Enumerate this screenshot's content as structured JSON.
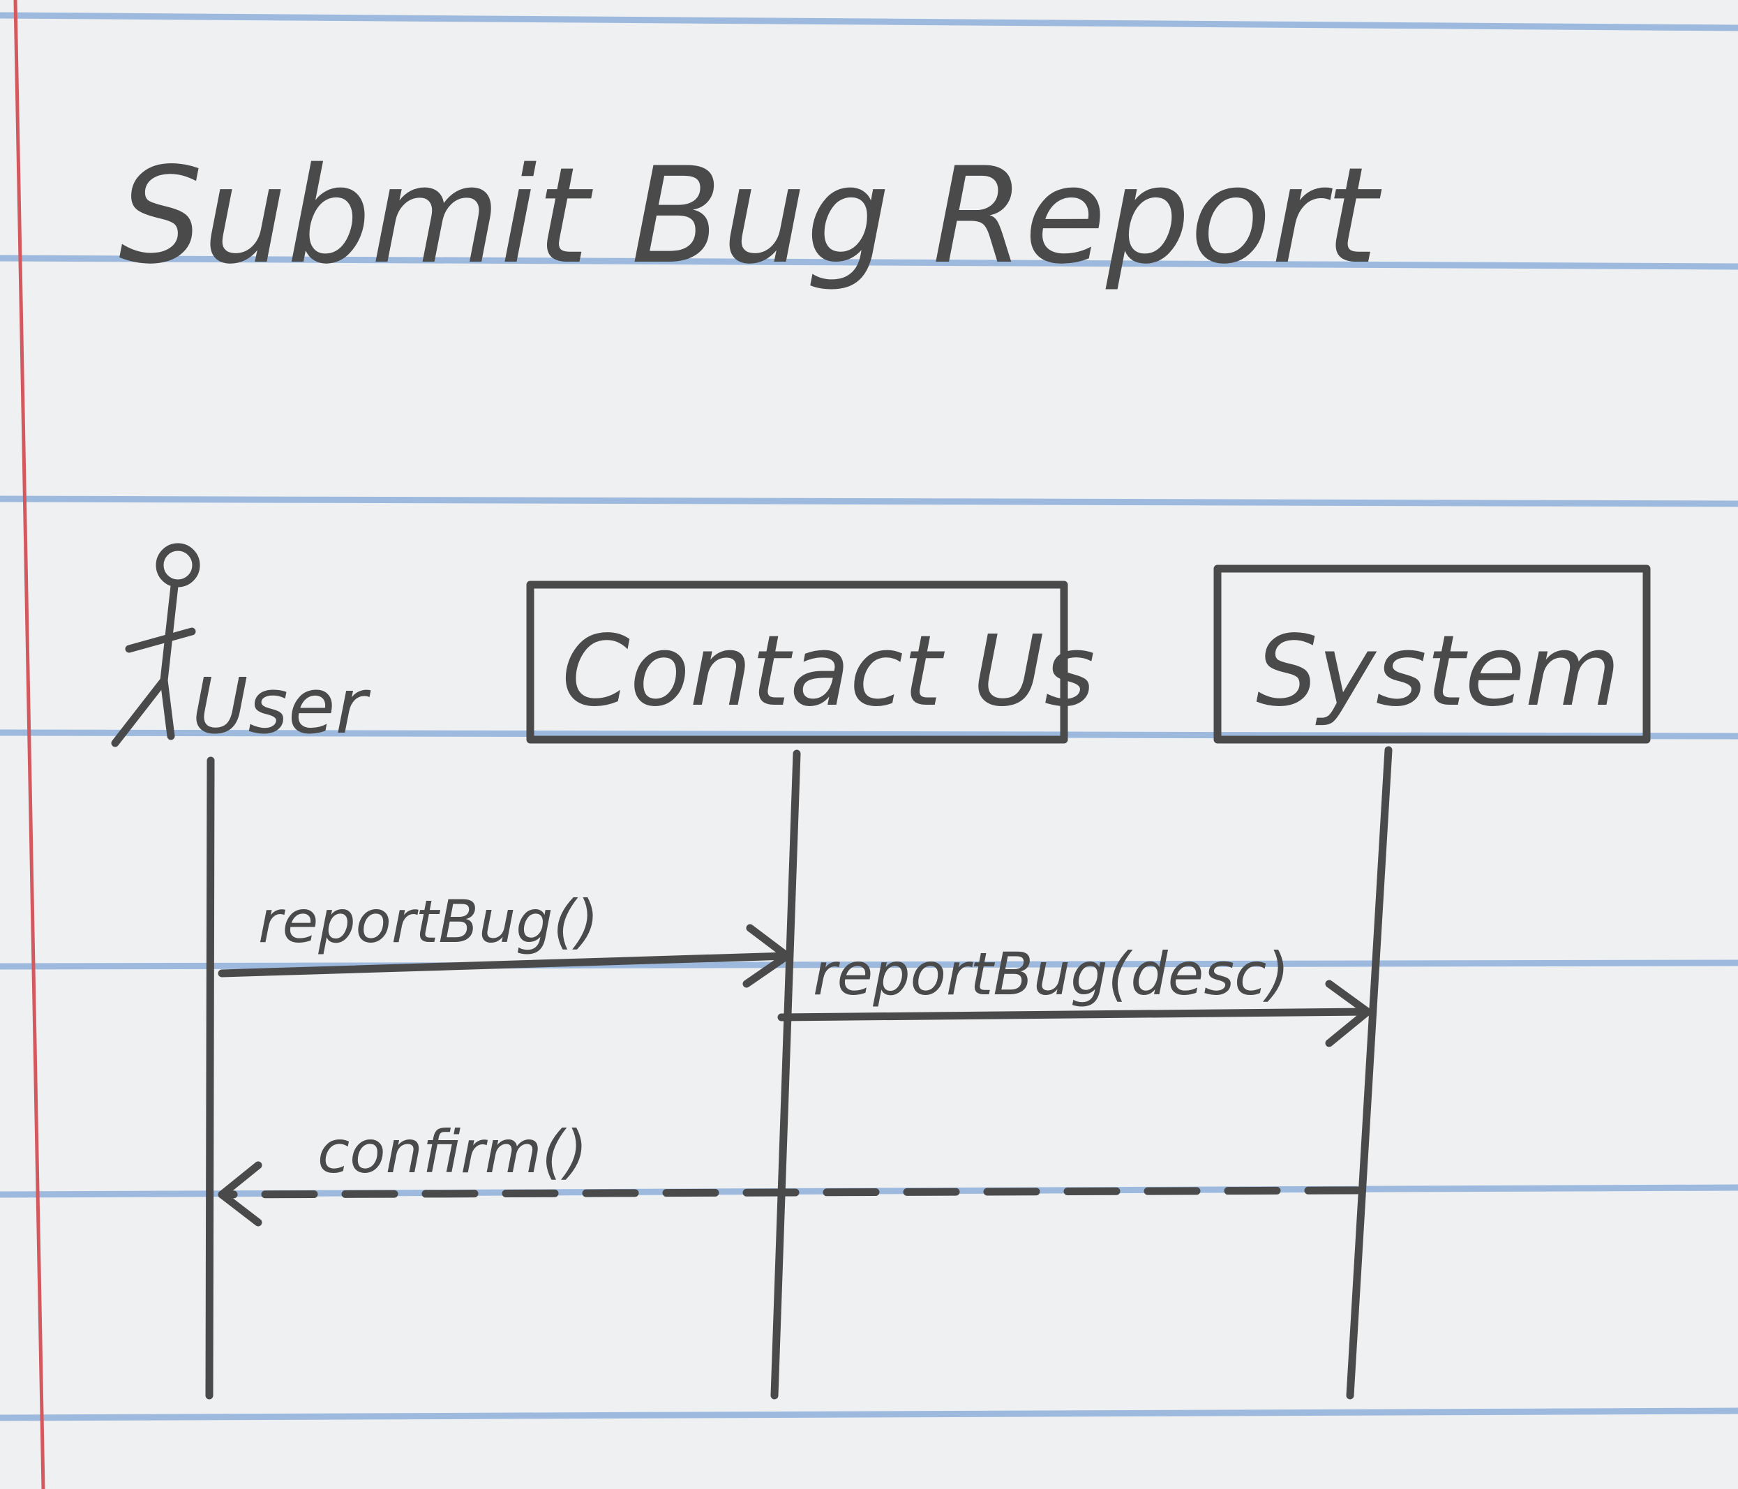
{
  "title": "Submit Bug Report",
  "actor": {
    "label": "User"
  },
  "participants": [
    {
      "label": "Contact Us"
    },
    {
      "label": "System"
    }
  ],
  "messages": [
    {
      "label": "reportBug()",
      "from": "User",
      "to": "Contact Us",
      "style": "solid"
    },
    {
      "label": "reportBug(desc)",
      "from": "Contact Us",
      "to": "System",
      "style": "solid"
    },
    {
      "label": "confirm()",
      "from": "System",
      "to": "User",
      "style": "dashed"
    }
  ],
  "colors": {
    "paper": "#eef0f2",
    "rule_line": "#8fb0db",
    "margin_line": "#d4595f",
    "pencil": "#4a4a4a"
  }
}
